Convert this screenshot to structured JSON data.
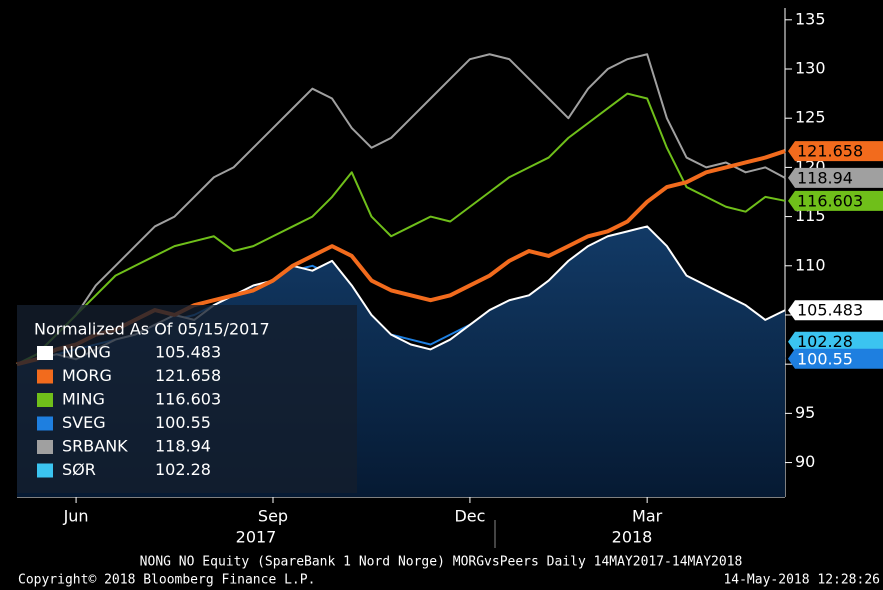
{
  "chart_data": {
    "type": "line",
    "legend_title": "Normalized As Of 05/15/2017",
    "categories": [
      null,
      null,
      null,
      "Jun",
      null,
      null,
      null,
      null,
      null,
      null,
      null,
      null,
      null,
      "Sep",
      null,
      null,
      null,
      null,
      null,
      null,
      null,
      null,
      null,
      "Dec",
      null,
      null,
      null,
      null,
      null,
      null,
      null,
      null,
      "Mar",
      null,
      null,
      null,
      null,
      null,
      null,
      null
    ],
    "year_labels": [
      "2017",
      "2018"
    ],
    "series": [
      {
        "name": "NONG",
        "color": "#ffffff",
        "area": true,
        "values": [
          100,
          100.5,
          101,
          100.5,
          101.5,
          102.5,
          103,
          104,
          105,
          104.5,
          106,
          107,
          108,
          108.5,
          110,
          109.5,
          110.5,
          108,
          105,
          103,
          102,
          101.5,
          102.5,
          104,
          105.5,
          106.5,
          107,
          108.5,
          110.5,
          112,
          113,
          113.5,
          114,
          112,
          109,
          108,
          107,
          106,
          104.5,
          105.483
        ]
      },
      {
        "name": "MORG",
        "color": "#f26b1d",
        "values": [
          100,
          100.5,
          101.5,
          102,
          103,
          103.5,
          104.5,
          105.5,
          105,
          106,
          106.5,
          107,
          107.5,
          108.5,
          110,
          111,
          112,
          111,
          108.5,
          107.5,
          107,
          106.5,
          107,
          108,
          109,
          110.5,
          111.5,
          111,
          112,
          113,
          113.5,
          114.5,
          116.5,
          118,
          118.5,
          119.5,
          120,
          120.5,
          121,
          121.658
        ]
      },
      {
        "name": "MING",
        "color": "#6fbf1a",
        "values": [
          100,
          101,
          103,
          105,
          107,
          109,
          110,
          111,
          112,
          112.5,
          113,
          111.5,
          112,
          113,
          114,
          115,
          117,
          119.5,
          115,
          113,
          114,
          115,
          114.5,
          116,
          117.5,
          119,
          120,
          121,
          123,
          124.5,
          126,
          127.5,
          127,
          122,
          118,
          117,
          116,
          115.5,
          117,
          116.603
        ]
      },
      {
        "name": "SVEG",
        "color": "#1e7fe0",
        "values": [
          100,
          100.5,
          101,
          101.5,
          102,
          102.5,
          103,
          104,
          104.5,
          105,
          106,
          107,
          107.5,
          108.5,
          109.5,
          110,
          109,
          106,
          104,
          103,
          102.5,
          102,
          103,
          104,
          105,
          105.5,
          106,
          106.5,
          107.5,
          108,
          108.5,
          109,
          108.5,
          107,
          106,
          105,
          103,
          102,
          101.5,
          100.55
        ]
      },
      {
        "name": "SRBANK",
        "color": "#a0a0a0",
        "values": [
          100,
          101,
          103,
          105,
          108,
          110,
          112,
          114,
          115,
          117,
          119,
          120,
          122,
          124,
          126,
          128,
          127,
          124,
          122,
          123,
          125,
          127,
          129,
          131,
          131.5,
          131,
          129,
          127,
          125,
          128,
          130,
          131,
          131.5,
          125,
          121,
          120,
          120.5,
          119.5,
          120,
          118.94
        ]
      },
      {
        "name": "SØR",
        "color": "#3bc4f0",
        "values": [
          100,
          100.5,
          101,
          100.5,
          101,
          101.5,
          101,
          102,
          101.5,
          102,
          101,
          102.5,
          102,
          101.5,
          101,
          101.5,
          102,
          101,
          100.5,
          100,
          99.5,
          100,
          100.5,
          101,
          101.5,
          102,
          103,
          103.5,
          104,
          104.5,
          104,
          103.5,
          103,
          103.5,
          103,
          102.5,
          102,
          101.5,
          102,
          102.28
        ]
      }
    ],
    "ylim": [
      86.5,
      136.2
    ],
    "yticks": [
      90,
      95,
      100,
      105,
      110,
      115,
      120,
      125,
      130,
      135
    ],
    "grid": false,
    "legend": "lower-left",
    "footer": "NONG NO Equity (SpareBank 1 Nord Norge) MORGvsPeers  Daily 14MAY2017-14MAY2018",
    "copyright": "Copyright© 2018 Bloomberg Finance L.P.",
    "timestamp": "14-May-2018 12:28:26"
  }
}
